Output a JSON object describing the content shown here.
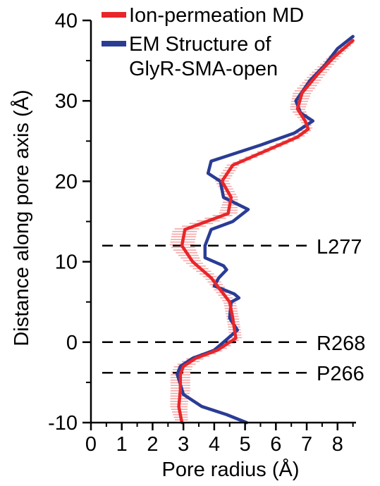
{
  "chart_data": {
    "type": "line",
    "xlabel": "Pore radius (Å)",
    "ylabel": "Distance along pore axis (Å)",
    "xlim": [
      0,
      8.6
    ],
    "ylim": [
      -10,
      40
    ],
    "x_ticks": [
      0,
      1,
      2,
      3,
      4,
      5,
      6,
      7,
      8
    ],
    "y_ticks": [
      -10,
      0,
      10,
      20,
      30,
      40
    ],
    "x_tick_labels": [
      "0",
      "1",
      "2",
      "3",
      "4",
      "5",
      "6",
      "7",
      "8"
    ],
    "y_tick_labels": [
      "-10",
      "0",
      "10",
      "20",
      "30",
      "40"
    ],
    "grid": false,
    "legend_position": "top-left",
    "series": [
      {
        "name": "Ion-permeation MD",
        "color": "#e8262a",
        "error_color": "#f4a6a6",
        "points": [
          [
            2.95,
            -10
          ],
          [
            2.85,
            -8
          ],
          [
            2.9,
            -6
          ],
          [
            2.9,
            -4
          ],
          [
            3.0,
            -3
          ],
          [
            3.4,
            -2
          ],
          [
            4.1,
            -1
          ],
          [
            4.7,
            0.5
          ],
          [
            4.6,
            3
          ],
          [
            4.5,
            5
          ],
          [
            3.9,
            8
          ],
          [
            3.3,
            10
          ],
          [
            2.95,
            12
          ],
          [
            3.05,
            14
          ],
          [
            3.75,
            15
          ],
          [
            4.45,
            16
          ],
          [
            4.55,
            18
          ],
          [
            4.25,
            20
          ],
          [
            4.6,
            22
          ],
          [
            5.8,
            24
          ],
          [
            6.7,
            25.5
          ],
          [
            7.05,
            26.5
          ],
          [
            6.95,
            27.5
          ],
          [
            6.7,
            29
          ],
          [
            6.85,
            31
          ],
          [
            7.4,
            33.5
          ],
          [
            7.9,
            35.5
          ],
          [
            8.5,
            37.5
          ]
        ],
        "errors": [
          0.2,
          0.28,
          0.32,
          0.32,
          0.3,
          0.28,
          0.22,
          0.2,
          0.2,
          0.2,
          0.22,
          0.28,
          0.4,
          0.4,
          0.38,
          0.3,
          0.22,
          0.22,
          0.2,
          0.2,
          0.2,
          0.15,
          0.15,
          0.25,
          0.3,
          0.25,
          0.2,
          0.1
        ]
      },
      {
        "name": "EM Structure of GlyR-SMA-open",
        "legend_lines": [
          "EM Structure of",
          "GlyR-SMA-open"
        ],
        "color": "#2a3c94",
        "points": [
          [
            5.05,
            -10
          ],
          [
            4.4,
            -9
          ],
          [
            3.6,
            -8
          ],
          [
            3.0,
            -6.5
          ],
          [
            2.8,
            -4
          ],
          [
            2.9,
            -3
          ],
          [
            3.3,
            -2
          ],
          [
            4.0,
            -1
          ],
          [
            4.75,
            1.5
          ],
          [
            4.5,
            3
          ],
          [
            4.55,
            5
          ],
          [
            4.8,
            5.5
          ],
          [
            4.65,
            6
          ],
          [
            4.0,
            7
          ],
          [
            4.15,
            8
          ],
          [
            4.4,
            9
          ],
          [
            4.3,
            9.5
          ],
          [
            3.7,
            10.5
          ],
          [
            3.7,
            12
          ],
          [
            3.9,
            14
          ],
          [
            4.6,
            15
          ],
          [
            5.1,
            16.5
          ],
          [
            4.3,
            18
          ],
          [
            4.2,
            20
          ],
          [
            3.8,
            21
          ],
          [
            3.9,
            22.5
          ],
          [
            4.3,
            23
          ],
          [
            5.5,
            24.5
          ],
          [
            6.6,
            26
          ],
          [
            7.2,
            27.5
          ],
          [
            6.8,
            28.5
          ],
          [
            6.65,
            30
          ],
          [
            7.1,
            32.5
          ],
          [
            7.6,
            34.5
          ],
          [
            8.0,
            36.5
          ],
          [
            8.5,
            38
          ]
        ]
      }
    ],
    "reference_lines": [
      {
        "label": "L277",
        "y": 12
      },
      {
        "label": "R268",
        "y": 0
      },
      {
        "label": "P266",
        "y": -3.8
      }
    ]
  }
}
